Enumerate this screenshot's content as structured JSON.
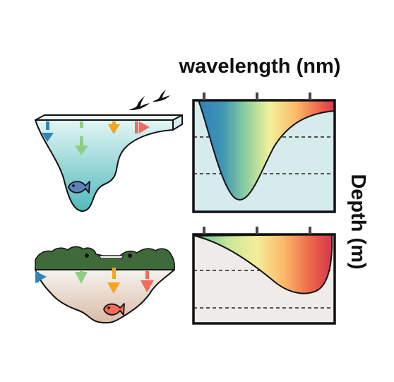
{
  "labels": {
    "x_axis": "wavelength (nm)",
    "y_axis": "Depth (m)"
  },
  "colors": {
    "blue": "#2f87b5",
    "green": "#8fcf84",
    "orange": "#f4a41d",
    "red": "#f16a5e",
    "clear_water_top": "#e3f6f5",
    "clear_water_bottom": "#52b9bd",
    "turbid_water_top": "#f2f0ec",
    "turbid_water_bottom": "#dcc3b0",
    "clear_panel_bg": "#d6ecec",
    "turbid_panel_bg": "#efebe8",
    "vegetation": "#3f6a3a",
    "fish_clear": "#5b82b8",
    "fish_turbid": "#ef6c57"
  },
  "icons": [
    "bird-icon",
    "fish-icon",
    "aquatic-vegetation-icon",
    "light-arrow-icon"
  ],
  "panels": [
    {
      "scene": "clear-water",
      "gradient": "blue-to-red",
      "depth_lines": 2
    },
    {
      "scene": "turbid-water",
      "gradient": "green-to-red",
      "depth_lines": 2
    }
  ]
}
